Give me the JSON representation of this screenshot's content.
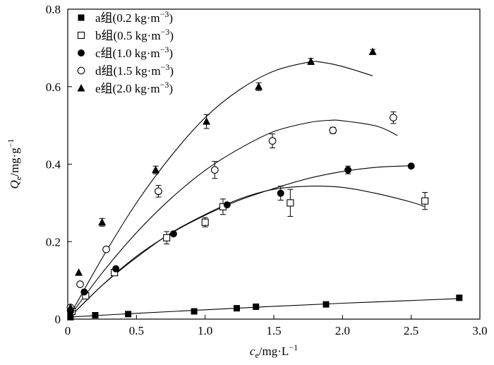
{
  "chart_data": {
    "type": "scatter",
    "xlabel": {
      "main": "c",
      "sub": "e",
      "rest": "/mg·L",
      "sup": "−1"
    },
    "ylabel": {
      "main": "Q",
      "sub": "e",
      "rest": "/mg·g",
      "sup": "−1"
    },
    "xlim": [
      0,
      3.0
    ],
    "ylim": [
      0,
      0.8
    ],
    "xticks": [
      0,
      0.5,
      1.0,
      1.5,
      2.0,
      2.5,
      3.0
    ],
    "xtick_labels": [
      "0",
      "0.5",
      "1.0",
      "1.5",
      "2.0",
      "2.5",
      "3.0"
    ],
    "yticks": [
      0,
      0.2,
      0.4,
      0.6,
      0.8
    ],
    "ytick_labels": [
      "0",
      "0.2",
      "0.4",
      "0.6",
      "0.8"
    ],
    "grid": false,
    "legend_position": "top-left",
    "series": [
      {
        "name": "a组(0.2 kg·m⁻³)",
        "legend": {
          "base": "a组(0.2 kg·m",
          "sup": "−3",
          "end": ")"
        },
        "marker": "square-filled",
        "x": [
          0.02,
          0.2,
          0.44,
          0.92,
          1.23,
          1.37,
          1.88,
          2.85
        ],
        "y": [
          0.005,
          0.01,
          0.013,
          0.02,
          0.028,
          0.032,
          0.038,
          0.055
        ],
        "err": [
          0,
          0,
          0,
          0,
          0,
          0,
          0,
          0
        ],
        "fit": [
          [
            0,
            0.005
          ],
          [
            0.5,
            0.015
          ],
          [
            1.0,
            0.024
          ],
          [
            1.5,
            0.033
          ],
          [
            2.0,
            0.041
          ],
          [
            2.5,
            0.048
          ],
          [
            2.85,
            0.053
          ]
        ]
      },
      {
        "name": "b组(0.5 kg·m⁻³)",
        "legend": {
          "base": "b组(0.5 kg·m",
          "sup": "−3",
          "end": ")"
        },
        "marker": "square-open",
        "x": [
          0.03,
          0.13,
          0.34,
          0.72,
          1.0,
          1.13,
          1.62,
          2.6
        ],
        "y": [
          0.02,
          0.06,
          0.12,
          0.21,
          0.25,
          0.29,
          0.3,
          0.305
        ],
        "err": [
          0,
          0,
          0,
          0.016,
          0.012,
          0.02,
          0.035,
          0.022
        ],
        "fit": [
          [
            0,
            0.0
          ],
          [
            0.25,
            0.087
          ],
          [
            0.5,
            0.159
          ],
          [
            0.75,
            0.222
          ],
          [
            1.0,
            0.27
          ],
          [
            1.25,
            0.31
          ],
          [
            1.5,
            0.335
          ],
          [
            1.75,
            0.343
          ],
          [
            2.0,
            0.34
          ],
          [
            2.25,
            0.324
          ],
          [
            2.5,
            0.302
          ],
          [
            2.6,
            0.29
          ]
        ]
      },
      {
        "name": "c组(1.0 kg·m⁻³)",
        "legend": {
          "base": "c组(1.0 kg·m",
          "sup": "−3",
          "end": ")"
        },
        "marker": "circle-filled",
        "x": [
          0.02,
          0.12,
          0.35,
          0.77,
          1.16,
          1.55,
          2.04,
          2.5
        ],
        "y": [
          0.02,
          0.07,
          0.13,
          0.22,
          0.295,
          0.325,
          0.385,
          0.395
        ],
        "err": [
          0,
          0,
          0,
          0,
          0,
          0.018,
          0.01,
          0
        ],
        "fit": [
          [
            0,
            0.0
          ],
          [
            0.25,
            0.087
          ],
          [
            0.5,
            0.162
          ],
          [
            0.75,
            0.221
          ],
          [
            1.0,
            0.268
          ],
          [
            1.25,
            0.307
          ],
          [
            1.5,
            0.337
          ],
          [
            1.75,
            0.363
          ],
          [
            2.0,
            0.381
          ],
          [
            2.25,
            0.392
          ],
          [
            2.5,
            0.396
          ]
        ]
      },
      {
        "name": "d组(1.5 kg·m⁻³)",
        "legend": {
          "base": "d组(1.5 kg·m",
          "sup": "−3",
          "end": ")"
        },
        "marker": "circle-open",
        "x": [
          0.02,
          0.09,
          0.28,
          0.66,
          1.07,
          1.49,
          1.93,
          2.37
        ],
        "y": [
          0.03,
          0.09,
          0.18,
          0.33,
          0.385,
          0.46,
          0.487,
          0.52
        ],
        "err": [
          0,
          0,
          0,
          0.015,
          0.022,
          0.018,
          0.008,
          0.015
        ],
        "fit": [
          [
            0,
            0.0
          ],
          [
            0.25,
            0.119
          ],
          [
            0.5,
            0.223
          ],
          [
            0.75,
            0.311
          ],
          [
            1.0,
            0.384
          ],
          [
            1.25,
            0.44
          ],
          [
            1.5,
            0.484
          ],
          [
            1.75,
            0.507
          ],
          [
            1.9,
            0.513
          ],
          [
            2.0,
            0.512
          ],
          [
            2.25,
            0.498
          ],
          [
            2.4,
            0.474
          ]
        ]
      },
      {
        "name": "e组(2.0 kg·m⁻³)",
        "legend": {
          "base": "e组(2.0 kg·m",
          "sup": "−3",
          "end": ")"
        },
        "marker": "triangle-filled",
        "x": [
          0.02,
          0.08,
          0.25,
          0.64,
          1.01,
          1.39,
          1.77,
          2.22
        ],
        "y": [
          0.03,
          0.12,
          0.25,
          0.385,
          0.51,
          0.6,
          0.665,
          0.69
        ],
        "err": [
          0,
          0,
          0.01,
          0.01,
          0.018,
          0.01,
          0.008,
          0.006
        ],
        "fit": [
          [
            0,
            0.0
          ],
          [
            0.25,
            0.157
          ],
          [
            0.5,
            0.3
          ],
          [
            0.75,
            0.42
          ],
          [
            1.0,
            0.52
          ],
          [
            1.25,
            0.592
          ],
          [
            1.5,
            0.64
          ],
          [
            1.75,
            0.663
          ],
          [
            1.85,
            0.663
          ],
          [
            2.0,
            0.652
          ],
          [
            2.22,
            0.628
          ]
        ]
      }
    ]
  }
}
